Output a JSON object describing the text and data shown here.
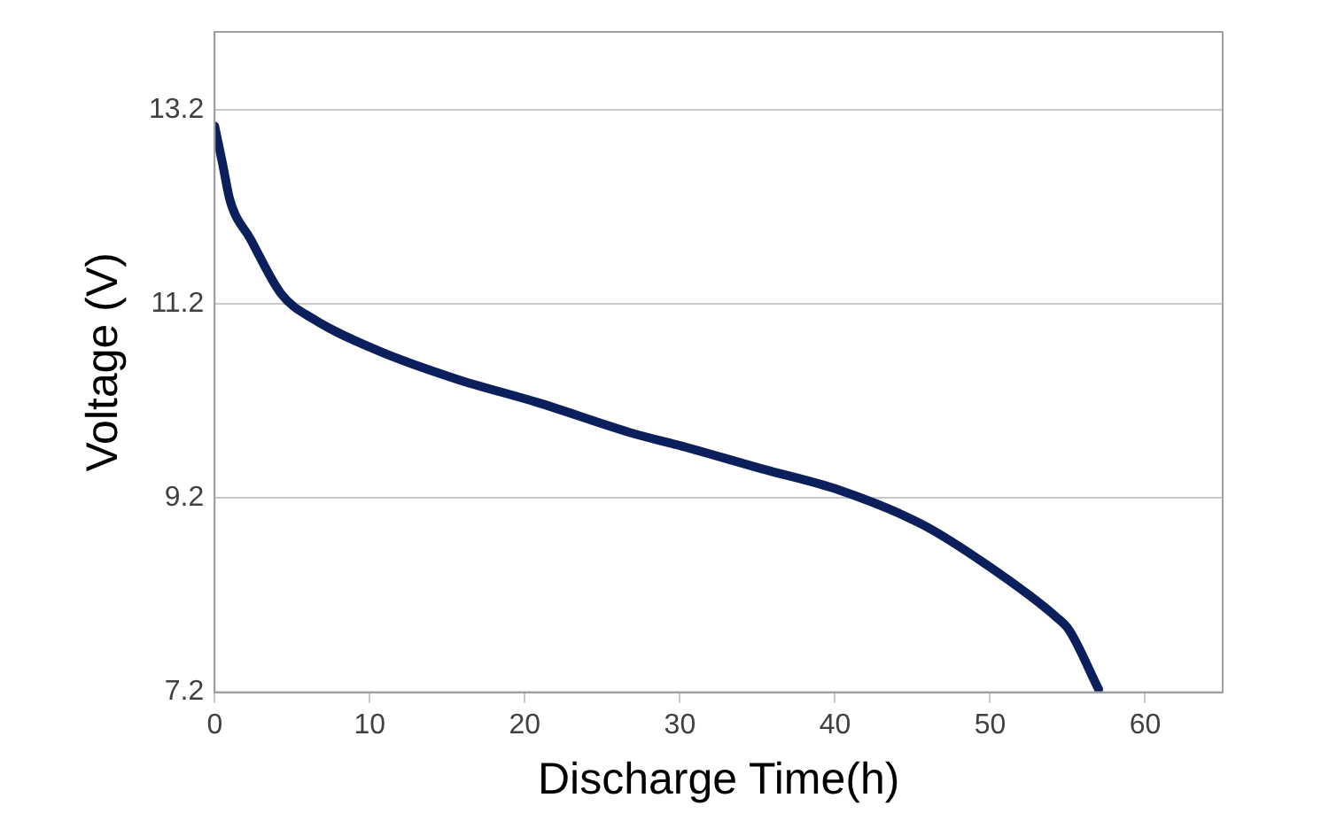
{
  "chart_data": {
    "type": "line",
    "xlabel": "Discharge Time(h)",
    "ylabel": "Voltage (V)",
    "x": [
      0,
      0.5,
      1,
      2.3,
      4.3,
      6.4,
      10.5,
      15.5,
      20.9,
      27.1,
      30,
      35.3,
      40.3,
      45.6,
      49.8,
      54.3,
      55.1,
      57
    ],
    "series": [
      {
        "color": "#0b1f5c",
        "values": [
          13.03,
          12.65,
          12.26,
          11.87,
          11.3,
          11.04,
          10.72,
          10.43,
          10.18,
          9.86,
          9.74,
          9.5,
          9.28,
          8.93,
          8.51,
          7.97,
          7.84,
          7.23
        ]
      }
    ],
    "xlim": [
      0,
      65
    ],
    "xticks": [
      0,
      10,
      20,
      30,
      40,
      50,
      60
    ],
    "ylim": [
      7.2,
      14.0
    ],
    "yticks": [
      7.2,
      9.2,
      11.2,
      13.2
    ],
    "grid": "y",
    "legend": false,
    "marker": "none",
    "line_style": "solid"
  }
}
